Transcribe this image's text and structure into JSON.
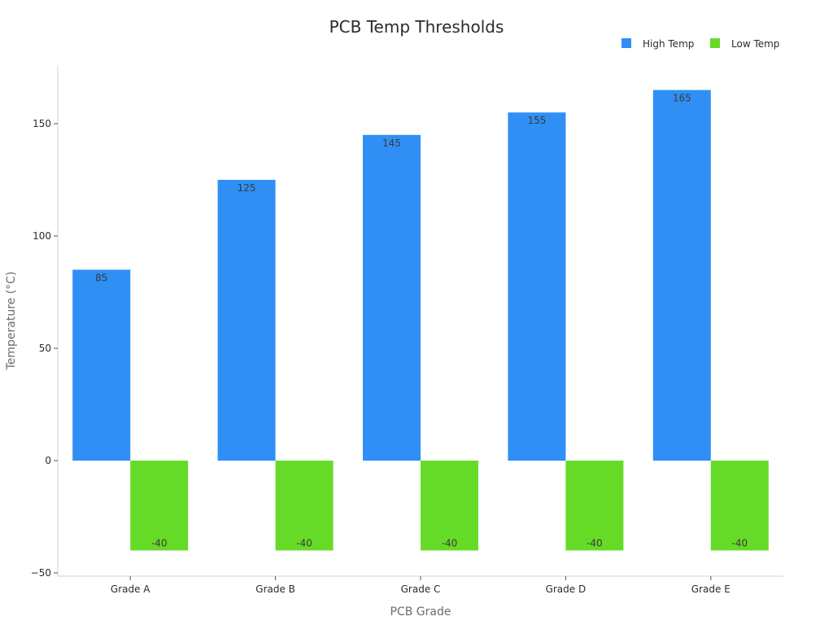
{
  "chart_data": {
    "type": "bar",
    "title": "PCB Temp Thresholds",
    "xlabel": "PCB Grade",
    "ylabel": "Temperature (°C)",
    "categories": [
      "Grade A",
      "Grade B",
      "Grade C",
      "Grade D",
      "Grade E"
    ],
    "series": [
      {
        "name": "High Temp",
        "color": "#2f8ff5",
        "values": [
          85,
          125,
          145,
          155,
          165
        ]
      },
      {
        "name": "Low Temp",
        "color": "#66db27",
        "values": [
          -40,
          -40,
          -40,
          -40,
          -40
        ]
      }
    ],
    "ylim": [
      -50,
      175
    ],
    "yticks": [
      -50,
      0,
      50,
      100,
      150
    ],
    "ytick_labels": [
      "−50",
      "0",
      "50",
      "100",
      "150"
    ],
    "grid": false,
    "legend_position": "top-right",
    "data_labels": true
  }
}
